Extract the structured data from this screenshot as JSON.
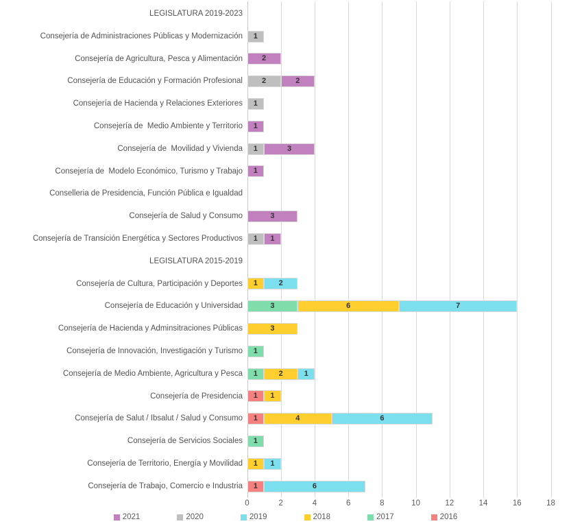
{
  "chart_data": {
    "type": "bar",
    "orientation": "horizontal",
    "stacked": true,
    "title": "",
    "xlabel": "",
    "ylabel": "",
    "xlim": [
      0,
      18
    ],
    "x_ticks": [
      0,
      2,
      4,
      6,
      8,
      10,
      12,
      14,
      16,
      18
    ],
    "grid": true,
    "legend_position": "bottom",
    "stack_order_note": "segments stack from axis in chronological year order",
    "legend": [
      {
        "label": "2021",
        "color": "#C180BE"
      },
      {
        "label": "2020",
        "color": "#BFBFBF"
      },
      {
        "label": "2019",
        "color": "#7CDFEE"
      },
      {
        "label": "2018",
        "color": "#FFCF30"
      },
      {
        "label": "2017",
        "color": "#7EDDAA"
      },
      {
        "label": "2016",
        "color": "#F58080"
      }
    ],
    "rows": [
      {
        "label": "LEGISLATURA 2019-2023",
        "header": true,
        "segments": []
      },
      {
        "label": "Consejería de Administraciones Públicas y Modernización",
        "segments": [
          {
            "series": "2020",
            "value": 1
          }
        ]
      },
      {
        "label": "Consejería de Agricultura, Pesca y Alimentación",
        "segments": [
          {
            "series": "2021",
            "value": 2
          }
        ]
      },
      {
        "label": "Consejería de Educación y Formación Profesional",
        "segments": [
          {
            "series": "2020",
            "value": 2
          },
          {
            "series": "2021",
            "value": 2
          }
        ]
      },
      {
        "label": "Consejería de Hacienda y Relaciones Exteriores",
        "segments": [
          {
            "series": "2020",
            "value": 1
          }
        ]
      },
      {
        "label": "Consejería de  Medio Ambiente y Territorio",
        "segments": [
          {
            "series": "2021",
            "value": 1
          }
        ]
      },
      {
        "label": "Consejería de  Movilidad y Vivienda",
        "segments": [
          {
            "series": "2020",
            "value": 1
          },
          {
            "series": "2021",
            "value": 3
          }
        ]
      },
      {
        "label": "Consejería de  Modelo Económico, Turismo y Trabajo",
        "segments": [
          {
            "series": "2021",
            "value": 1
          }
        ]
      },
      {
        "label": "Conselleria de Presidencia, Función Pública e Igualdad",
        "segments": []
      },
      {
        "label": "Consejería de Salud y Consumo",
        "segments": [
          {
            "series": "2021",
            "value": 3
          }
        ]
      },
      {
        "label": "Consejería de Transición Energética y Sectores Productivos",
        "segments": [
          {
            "series": "2020",
            "value": 1
          },
          {
            "series": "2021",
            "value": 1
          }
        ]
      },
      {
        "label": "LEGISLATURA 2015-2019",
        "header": true,
        "segments": []
      },
      {
        "label": "Consejería de Cultura, Participación y Deportes",
        "segments": [
          {
            "series": "2018",
            "value": 1
          },
          {
            "series": "2019",
            "value": 2
          }
        ]
      },
      {
        "label": "Consejería de Educación y Universidad",
        "segments": [
          {
            "series": "2017",
            "value": 3
          },
          {
            "series": "2018",
            "value": 6
          },
          {
            "series": "2019",
            "value": 7
          }
        ]
      },
      {
        "label": "Consejería de Hacienda y Adminsitraciones Públicas",
        "segments": [
          {
            "series": "2018",
            "value": 3
          }
        ]
      },
      {
        "label": "Consejería de Innovación, Investigación y Turismo",
        "segments": [
          {
            "series": "2017",
            "value": 1
          }
        ]
      },
      {
        "label": "Consejería de Medio Ambiente, Agricultura y Pesca",
        "segments": [
          {
            "series": "2017",
            "value": 1
          },
          {
            "series": "2018",
            "value": 2
          },
          {
            "series": "2019",
            "value": 1
          }
        ]
      },
      {
        "label": "Consejería de Presidencia",
        "segments": [
          {
            "series": "2016",
            "value": 1
          },
          {
            "series": "2018",
            "value": 1
          }
        ]
      },
      {
        "label": "Consejería de Salut / Ibsalut / Salud y Consumo",
        "segments": [
          {
            "series": "2016",
            "value": 1
          },
          {
            "series": "2018",
            "value": 4
          },
          {
            "series": "2019",
            "value": 6
          }
        ]
      },
      {
        "label": "Consejería de Servicios Sociales",
        "segments": [
          {
            "series": "2017",
            "value": 1
          }
        ]
      },
      {
        "label": "Consejería de Territorio, Energía y Movilidad",
        "segments": [
          {
            "series": "2018",
            "value": 1
          },
          {
            "series": "2019",
            "value": 1
          }
        ]
      },
      {
        "label": "Consejería de Trabajo, Comercio e Industria",
        "segments": [
          {
            "series": "2016",
            "value": 1
          },
          {
            "series": "2019",
            "value": 6
          }
        ]
      }
    ]
  }
}
